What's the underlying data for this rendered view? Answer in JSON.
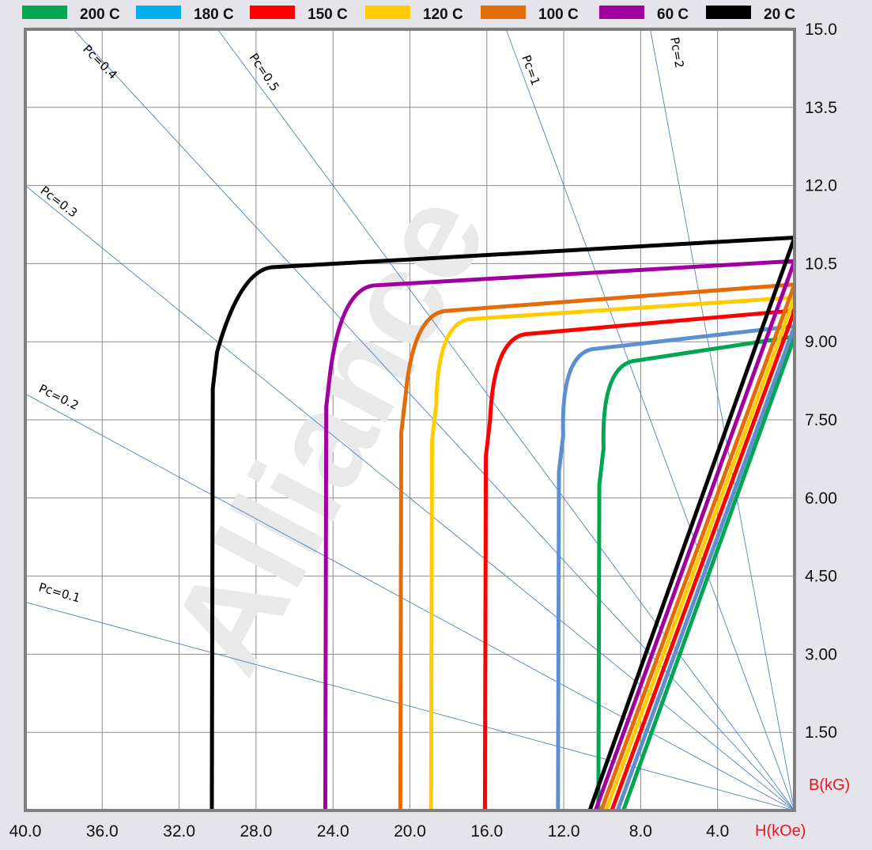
{
  "chart_data": {
    "type": "line",
    "title": "",
    "xlabel": "H(kOe)",
    "ylabel": "B(kG)",
    "watermark": "Alliance",
    "x_reversed": true,
    "xlim": [
      40.0,
      0.0
    ],
    "ylim": [
      0.0,
      15.0
    ],
    "x_ticks": [
      {
        "value": 40,
        "label": "40.0"
      },
      {
        "value": 36,
        "label": "36.0"
      },
      {
        "value": 32,
        "label": "32.0"
      },
      {
        "value": 28,
        "label": "28.0"
      },
      {
        "value": 24,
        "label": "24.0"
      },
      {
        "value": 20,
        "label": "20.0"
      },
      {
        "value": 16,
        "label": "16.0"
      },
      {
        "value": 12,
        "label": "12.0"
      },
      {
        "value": 8,
        "label": "8.0"
      },
      {
        "value": 4,
        "label": "4.0"
      }
    ],
    "y_ticks": [
      {
        "value": 15.0,
        "label": "15.0"
      },
      {
        "value": 13.5,
        "label": "13.5"
      },
      {
        "value": 12.0,
        "label": "12.0"
      },
      {
        "value": 10.5,
        "label": "10.5"
      },
      {
        "value": 9.0,
        "label": "9.00"
      },
      {
        "value": 7.5,
        "label": "7.50"
      },
      {
        "value": 6.0,
        "label": "6.00"
      },
      {
        "value": 4.5,
        "label": "4.50"
      },
      {
        "value": 3.0,
        "label": "3.00"
      },
      {
        "value": 1.5,
        "label": "1.50"
      }
    ],
    "grid": true,
    "legend_position": "top",
    "series": [
      {
        "name": "200 C",
        "color": "#00a651",
        "Br": 9.1,
        "knee_H": 9.8,
        "knee_B": 8.55,
        "Hc": 10.2,
        "B0": 0.0
      },
      {
        "name": "180 C",
        "color": "#00aeef",
        "line_color": "#5b8fd0",
        "Br": 9.3,
        "knee_H": 11.9,
        "knee_B": 8.8,
        "Hc": 12.3,
        "B0": 0.0
      },
      {
        "name": "150 C",
        "color": "#ff0000",
        "Br": 9.6,
        "knee_H": 15.4,
        "knee_B": 9.1,
        "Hc": 16.1,
        "B0": 0.0
      },
      {
        "name": "120 C",
        "color": "#ffcc00",
        "Br": 9.85,
        "knee_H": 18.3,
        "knee_B": 9.4,
        "Hc": 18.9,
        "B0": 0.0
      },
      {
        "name": "100 C",
        "color": "#e36c09",
        "Br": 10.1,
        "knee_H": 19.6,
        "knee_B": 9.55,
        "Hc": 20.5,
        "B0": 0.0
      },
      {
        "name": "60 C",
        "color": "#a000a0",
        "Br": 10.55,
        "knee_H": 23.3,
        "knee_B": 10.05,
        "Hc": 24.4,
        "B0": 0.0
      },
      {
        "name": "20 C",
        "color": "#000000",
        "Br": 11.0,
        "knee_H": 28.6,
        "knee_B": 10.4,
        "Hc": 30.3,
        "B0": 0.0
      }
    ],
    "load_lines": [
      {
        "label": "Pc=0.1",
        "pc": 0.1
      },
      {
        "label": "Pc=0.2",
        "pc": 0.2
      },
      {
        "label": "Pc=0.3",
        "pc": 0.3
      },
      {
        "label": "Pc=0.4",
        "pc": 0.4
      },
      {
        "label": "Pc=0.5",
        "pc": 0.5
      },
      {
        "label": "Pc=1",
        "pc": 1.0
      },
      {
        "label": "Pc=2",
        "pc": 2.0
      }
    ]
  }
}
